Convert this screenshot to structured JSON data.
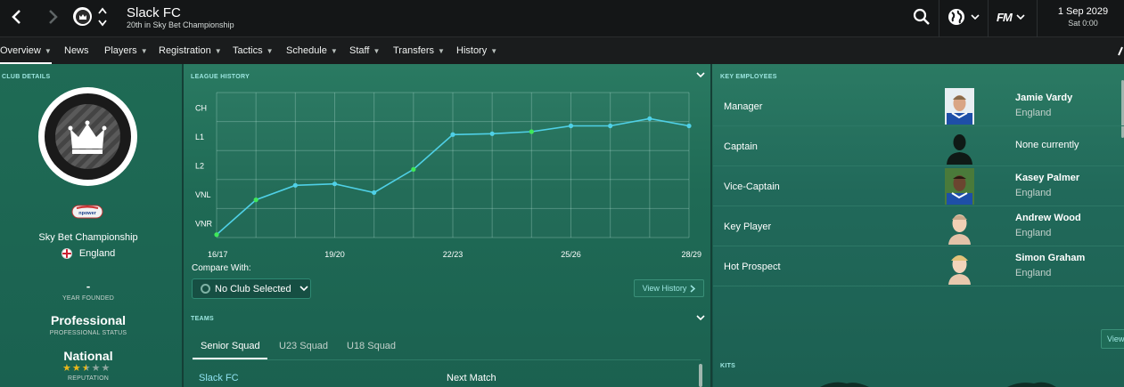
{
  "header": {
    "club_name": "Slack FC",
    "club_subtitle": "20th in Sky Bet Championship",
    "date_main": "1 Sep 2029",
    "date_sub": "Sat 0:00",
    "fm_label": "FM"
  },
  "nav": {
    "items": [
      {
        "label": "Overview",
        "has_dropdown": true,
        "active": true
      },
      {
        "label": "News",
        "has_dropdown": false
      },
      {
        "label": "Players",
        "has_dropdown": true
      },
      {
        "label": "Registration",
        "has_dropdown": true
      },
      {
        "label": "Tactics",
        "has_dropdown": true
      },
      {
        "label": "Schedule",
        "has_dropdown": true
      },
      {
        "label": "Staff",
        "has_dropdown": true
      },
      {
        "label": "Transfers",
        "has_dropdown": true
      },
      {
        "label": "History",
        "has_dropdown": true
      }
    ]
  },
  "club_details": {
    "section_title": "CLUB DETAILS",
    "competition": "Sky Bet Championship",
    "country": "England",
    "year_founded": "-",
    "year_founded_label": "YEAR FOUNDED",
    "status": "Professional",
    "status_label": "PROFESSIONAL STATUS",
    "reputation": "National",
    "reputation_label": "REPUTATION",
    "reputation_stars": 2.5,
    "reputation_max": 5,
    "league_logo_text": "npower"
  },
  "league_history": {
    "section_title": "LEAGUE HISTORY",
    "compare_label": "Compare With:",
    "compare_value": "No Club Selected",
    "view_history_label": "View History"
  },
  "chart_data": {
    "type": "line",
    "title": "",
    "y_categories": [
      "VNR",
      "VNL",
      "L2",
      "L1",
      "CH"
    ],
    "x_tick_labels": [
      "16/17",
      "19/20",
      "22/23",
      "25/26",
      "28/29"
    ],
    "x": [
      "16/17",
      "17/18",
      "18/19",
      "19/20",
      "20/21",
      "21/22",
      "22/23",
      "23/24",
      "24/25",
      "25/26",
      "26/27",
      "27/28",
      "28/29"
    ],
    "series": [
      {
        "values": [
          0.6,
          1.8,
          2.3,
          2.35,
          2.05,
          2.85,
          4.05,
          4.08,
          4.15,
          4.35,
          4.35,
          4.6,
          4.35
        ],
        "highlighted_points": [
          0,
          1,
          5,
          8
        ],
        "color": "#4fd0e6",
        "highlight_color": "#3ee85a"
      }
    ],
    "grid": true
  },
  "teams": {
    "section_title": "TEAMS",
    "tabs": [
      "Senior Squad",
      "U23 Squad",
      "U18 Squad"
    ],
    "active_tab": "Senior Squad",
    "club_link": "Slack FC",
    "next_match_label": "Next Match"
  },
  "key_employees": {
    "section_title": "KEY EMPLOYEES",
    "rows": [
      {
        "role": "Manager",
        "name": "Jamie Vardy",
        "nationality": "England",
        "photo": "leicester-kit-photo"
      },
      {
        "role": "Captain",
        "name": "None currently",
        "nationality": "",
        "photo": "silhouette"
      },
      {
        "role": "Vice-Captain",
        "name": "Kasey Palmer",
        "nationality": "England",
        "photo": "leicester-kit-photo"
      },
      {
        "role": "Key Player",
        "name": "Andrew Wood",
        "nationality": "England",
        "photo": "face-photo"
      },
      {
        "role": "Hot Prospect",
        "name": "Simon Graham",
        "nationality": "England",
        "photo": "face-photo-blond"
      }
    ],
    "view_button_label": "View"
  },
  "kits": {
    "section_title": "KITS"
  },
  "colors": {
    "accent_cyan": "#9ce6e0",
    "line": "#4fd0e6",
    "point_highlight": "#3ee85a",
    "topbar_bg": "#141617",
    "panel_green": "#1f6b55"
  }
}
